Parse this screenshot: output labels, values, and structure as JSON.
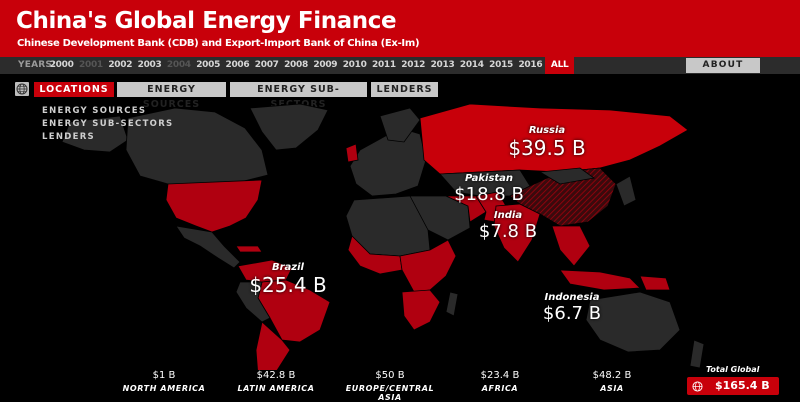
{
  "header": {
    "title": "China's Global Energy Finance",
    "subtitle": "Chinese Development Bank (CDB) and Export-Import Bank of China (Ex-Im)"
  },
  "years": {
    "label": "YEARS:",
    "items": [
      "2000",
      "2001",
      "2002",
      "2003",
      "2004",
      "2005",
      "2006",
      "2007",
      "2008",
      "2009",
      "2010",
      "2011",
      "2012",
      "2013",
      "2014",
      "2015",
      "2016",
      "ALL"
    ],
    "disabled": [
      "2001",
      "2004"
    ],
    "active": "ALL"
  },
  "about_label": "ABOUT",
  "tabs": [
    "LOCATIONS",
    "ENERGY SOURCES",
    "ENERGY SUB-SECTORS",
    "LENDERS"
  ],
  "subnav": [
    "ENERGY SOURCES",
    "ENERGY SUB-SECTORS",
    "LENDERS"
  ],
  "map_labels": {
    "russia": {
      "name": "Russia",
      "value": "$39.5 B"
    },
    "pakistan": {
      "name": "Pakistan",
      "value": "$18.8 B"
    },
    "india": {
      "name": "India",
      "value": "$7.8 B"
    },
    "brazil": {
      "name": "Brazil",
      "value": "$25.4 B"
    },
    "indonesia": {
      "name": "Indonesia",
      "value": "$6.7 B"
    }
  },
  "regions": [
    {
      "value": "$1 B",
      "name": "NORTH AMERICA"
    },
    {
      "value": "$42.8 B",
      "name": "LATIN AMERICA"
    },
    {
      "value": "$50 B",
      "name": "EUROPE/CENTRAL ASIA"
    },
    {
      "value": "$23.4 B",
      "name": "AFRICA"
    },
    {
      "value": "$48.2 B",
      "name": "ASIA"
    }
  ],
  "total": {
    "label": "Total Global",
    "value": "$165.4 B"
  },
  "colors": {
    "accent": "#c8000a",
    "land": "#2a2a2a",
    "invested": "#b00010",
    "china_hatch": "#5a0008"
  },
  "icons": {
    "globe": "globe-icon"
  }
}
